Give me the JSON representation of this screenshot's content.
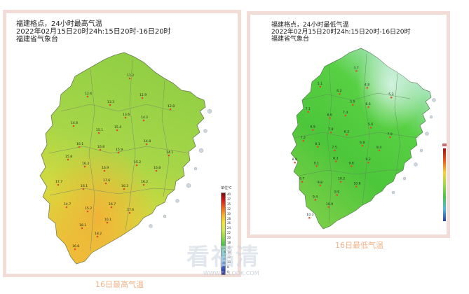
{
  "maps": [
    {
      "title_lines": [
        "福建格点，24小时最高气温",
        "2022年02月15日20时24h:15日20时-16日20时",
        "福建省气象台"
      ],
      "caption": "16日最高气温",
      "legend_title": "单位℃",
      "legend_labels": [
        "40",
        "37",
        "35",
        "32",
        "30",
        "28",
        "26",
        "24",
        "22",
        "20",
        "18",
        "16",
        "14",
        "12",
        "10",
        "8",
        "6"
      ],
      "station_values": [
        "11.2",
        "12.6",
        "11.9",
        "13.3",
        "13.6",
        "14.2",
        "12.8",
        "14.6",
        "15.1",
        "15.4",
        "16.1",
        "16.8",
        "15.9",
        "14.8",
        "15.8",
        "16.3",
        "16.9",
        "15.2",
        "16.8",
        "14.1",
        "17.7",
        "16.1",
        "17.6",
        "16.3",
        "16.2",
        "14.7",
        "15.2",
        "16.7",
        "17.6",
        "18.1",
        "18.2",
        "16.8",
        "16.1"
      ],
      "colors": {
        "base": "#9fd24a",
        "warm": "#e9d23c",
        "warmer": "#f3b236",
        "cool": "#7fcd42"
      }
    },
    {
      "title_lines": [
        "福建格点，24小时最低气温",
        "2022年02月15日20时24h:15日20时-16日20时",
        "福建省气象台"
      ],
      "caption": "16日最低气温",
      "station_values": [
        "3.7",
        "5.1",
        "4.8",
        "6.2",
        "5.9",
        "6.5",
        "5.3",
        "7.1",
        "6.6",
        "7.4",
        "6.9",
        "7.8",
        "6.3",
        "5.6",
        "7.2",
        "8.1",
        "7.5",
        "6.8",
        "8.4",
        "7.9",
        "8.8",
        "9.1",
        "8.3",
        "9.6",
        "9.2",
        "8.7",
        "9.8",
        "10.2",
        "10.6",
        "9.4",
        "10.9",
        "10.3",
        "9.9"
      ],
      "colors": {
        "base": "#4fcf3c",
        "cool": "#9fe6b8",
        "warm": "#7ed24a",
        "dark": "#3ab53a"
      }
    }
  ],
  "watermark": {
    "text": "看福清",
    "url": "WWW.FQLOOK.COM"
  }
}
